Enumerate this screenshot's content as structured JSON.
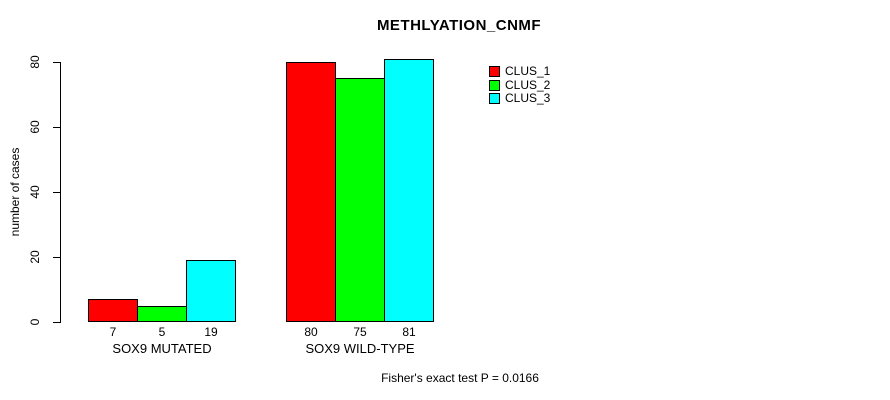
{
  "chart_data": {
    "type": "bar",
    "title": "METHLYATION_CNMF",
    "xlabel": "",
    "ylabel": "number of cases",
    "ylim": [
      0,
      80
    ],
    "yticks": [
      0,
      20,
      40,
      60,
      80
    ],
    "grid": false,
    "legend_position": "right-top",
    "categories": [
      "SOX9 MUTATED",
      "SOX9 WILD-TYPE"
    ],
    "series": [
      {
        "name": "CLUS_1",
        "color": "#ff0000",
        "values": [
          7,
          80
        ]
      },
      {
        "name": "CLUS_2",
        "color": "#00ff00",
        "values": [
          5,
          75
        ]
      },
      {
        "name": "CLUS_3",
        "color": "#00ffff",
        "values": [
          19,
          81
        ]
      }
    ],
    "bar_value_labels": [
      [
        7,
        5,
        19
      ],
      [
        80,
        75,
        81
      ]
    ],
    "annotation": "Fisher's exact test P = 0.0166"
  },
  "colors": {
    "background": "#ffffff",
    "axis": "#000000",
    "text": "#000000",
    "clus_1": "#ff0000",
    "clus_2": "#00ff00",
    "clus_3": "#00ffff"
  }
}
